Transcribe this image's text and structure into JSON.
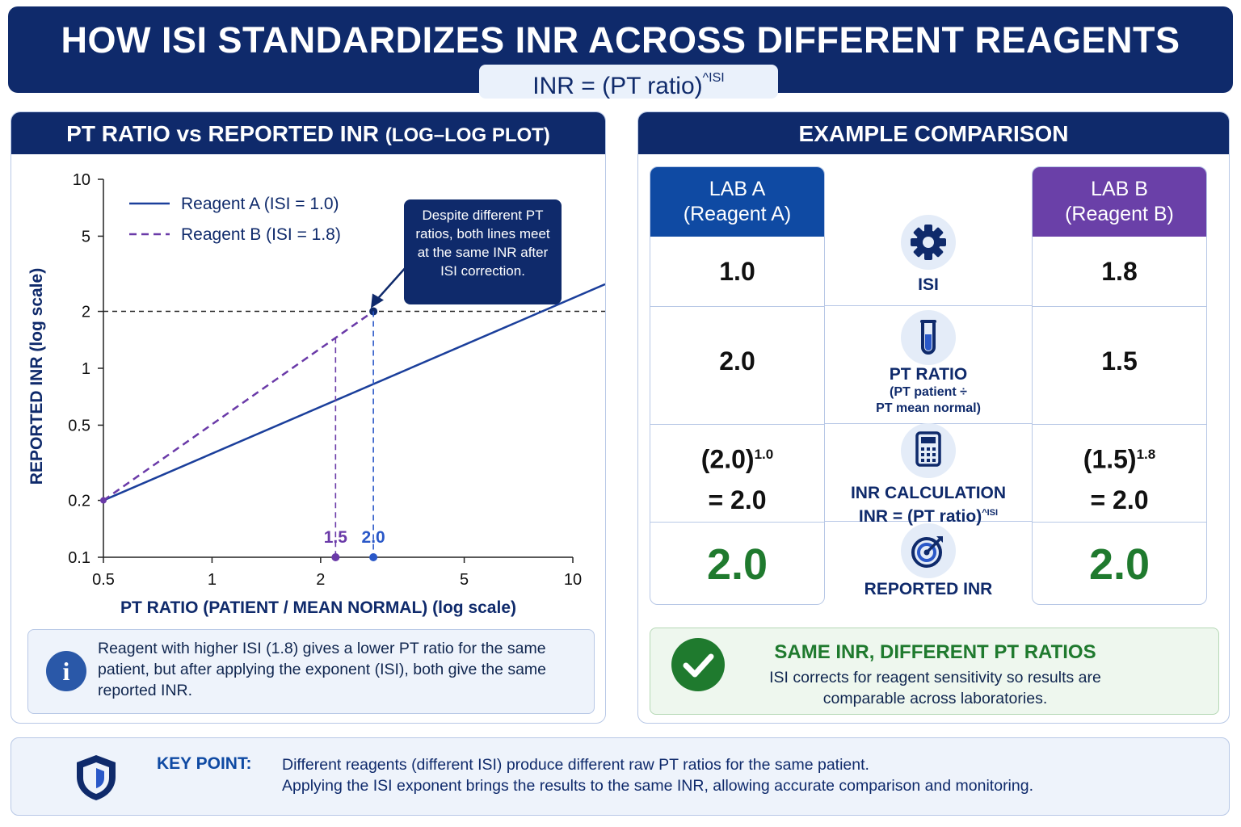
{
  "header": {
    "title": "HOW ISI STANDARDIZES INR ACROSS DIFFERENT REAGENTS",
    "formula_base": "INR = (PT ratio)",
    "formula_exp": "^ISI"
  },
  "left_panel": {
    "title_main": "PT RATIO vs REPORTED INR ",
    "title_paren": "(LOG–LOG PLOT)",
    "callout": "Despite different PT ratios, both lines meet at the same INR after ISI correction.",
    "info_text": "Reagent with higher ISI (1.8) gives a lower PT ratio for the same patient, but after applying the exponent (ISI), both give the same reported INR."
  },
  "chart_data": {
    "type": "line",
    "xlabel": "PT RATIO (PATIENT / MEAN NORMAL) (log scale)",
    "ylabel": "REPORTED INR (log scale)",
    "x_scale": "log",
    "y_scale": "log",
    "xlim": [
      0.5,
      10
    ],
    "ylim": [
      0.1,
      10
    ],
    "x_ticks": [
      0.5,
      1,
      2,
      5,
      10
    ],
    "y_ticks": [
      0.1,
      0.2,
      0.5,
      1,
      2,
      5,
      10
    ],
    "x_tick_labels": [
      "0.5",
      "1",
      "2",
      "5",
      "10"
    ],
    "y_tick_labels": [
      "0.1",
      "0.2",
      "0.5",
      "1",
      "2",
      "5",
      "10"
    ],
    "legend_position": "top-left",
    "grid": false,
    "series": [
      {
        "name": "Reagent A (ISI = 1.0)",
        "color": "#1b3f9b",
        "style": "solid",
        "x": [
          0.5,
          10
        ],
        "y": [
          0.2,
          2.35
        ]
      },
      {
        "name": "Reagent B (ISI = 1.8)",
        "color": "#6a3aa8",
        "style": "dashed",
        "x": [
          0.5,
          2.8
        ],
        "y": [
          0.2,
          2.0
        ]
      }
    ],
    "reference_y": 2,
    "markers": [
      {
        "label": "1.5",
        "x": 2.2,
        "y_top": 1.45,
        "color": "#6a3aa8"
      },
      {
        "label": "2.0",
        "x": 2.8,
        "y_top": 2.0,
        "color": "#2a58c8"
      }
    ]
  },
  "right_panel": {
    "title": "EXAMPLE COMPARISON",
    "lab_a": {
      "name": "LAB A",
      "reagent": "(Reagent A)",
      "isi": "1.0",
      "pt_ratio": "2.0",
      "calc_base": "(2.0)",
      "calc_exp": "1.0",
      "calc_result": "= 2.0",
      "inr": "2.0"
    },
    "lab_b": {
      "name": "LAB B",
      "reagent": "(Reagent B)",
      "isi": "1.8",
      "pt_ratio": "1.5",
      "calc_base": "(1.5)",
      "calc_exp": "1.8",
      "calc_result": "= 2.0",
      "inr": "2.0"
    },
    "rows": {
      "isi": "ISI",
      "pt_ratio": "PT RATIO",
      "pt_ratio_sub1": "(PT patient ÷",
      "pt_ratio_sub2": "PT mean normal)",
      "calc_label": "INR CALCULATION",
      "calc_formula": "INR = (PT ratio)",
      "calc_formula_exp": "^ISI",
      "reported": "REPORTED INR"
    },
    "summary_title": "SAME INR, DIFFERENT PT RATIOS",
    "summary_text": "ISI corrects for reagent sensitivity so results are comparable across laboratories."
  },
  "key_point": {
    "label": "KEY POINT:",
    "line1": "Different reagents (different ISI) produce different raw PT ratios for the same patient.",
    "line2": "Applying the ISI exponent brings the results to the same INR, allowing accurate comparison and monitoring."
  },
  "icons": [
    "gear-icon",
    "test-tube-icon",
    "calculator-icon",
    "target-icon",
    "info-icon",
    "check-icon",
    "shield-icon"
  ]
}
